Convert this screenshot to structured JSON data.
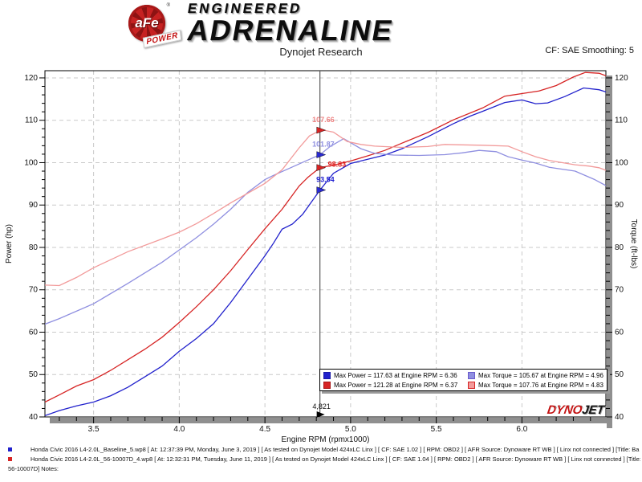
{
  "header": {
    "logo_text": "aFe",
    "logo_reg": "®",
    "logo_sub": "POWER",
    "brand_small": "ENGINEERED",
    "brand_large": "ADRENALINE",
    "subtitle": "Dynojet Research",
    "smoothing": "CF: SAE Smoothing: 5"
  },
  "chart_data": {
    "type": "line",
    "title": "Dynojet Research",
    "xlabel": "Engine RPM (rpmx1000)",
    "ylabel_left": "Power (hp)",
    "ylabel_right": "Torque (ft-lbs)",
    "xlim": [
      3.216,
      6.49
    ],
    "ylim": [
      40,
      121.7
    ],
    "x_ticks": [
      3.5,
      4.0,
      4.5,
      5.0,
      5.5,
      6.0
    ],
    "y_ticks": [
      40,
      50,
      60,
      70,
      80,
      90,
      100,
      110,
      120
    ],
    "grid": true,
    "series": [
      {
        "name": "power-baseline",
        "color": "#2121cc",
        "points": [
          [
            3.216,
            40.3
          ],
          [
            3.3,
            41.5
          ],
          [
            3.4,
            42.6
          ],
          [
            3.5,
            43.5
          ],
          [
            3.6,
            45.0
          ],
          [
            3.7,
            47.0
          ],
          [
            3.8,
            49.5
          ],
          [
            3.9,
            52.0
          ],
          [
            4.0,
            55.5
          ],
          [
            4.1,
            58.5
          ],
          [
            4.2,
            62.0
          ],
          [
            4.3,
            67.0
          ],
          [
            4.4,
            72.5
          ],
          [
            4.5,
            78.0
          ],
          [
            4.55,
            81.0
          ],
          [
            4.6,
            84.3
          ],
          [
            4.66,
            85.5
          ],
          [
            4.72,
            87.8
          ],
          [
            4.821,
            93.54
          ],
          [
            4.9,
            97.5
          ],
          [
            5.0,
            99.8
          ],
          [
            5.1,
            100.8
          ],
          [
            5.2,
            101.8
          ],
          [
            5.3,
            103.3
          ],
          [
            5.45,
            106.1
          ],
          [
            5.6,
            109.2
          ],
          [
            5.7,
            111.0
          ],
          [
            5.77,
            112.1
          ],
          [
            5.9,
            114.2
          ],
          [
            6.0,
            114.8
          ],
          [
            6.08,
            113.9
          ],
          [
            6.15,
            114.1
          ],
          [
            6.25,
            115.6
          ],
          [
            6.36,
            117.63
          ],
          [
            6.45,
            117.2
          ],
          [
            6.49,
            116.7
          ]
        ]
      },
      {
        "name": "power-modified",
        "color": "#d62424",
        "points": [
          [
            3.216,
            43.5
          ],
          [
            3.3,
            45.2
          ],
          [
            3.4,
            47.3
          ],
          [
            3.5,
            48.8
          ],
          [
            3.6,
            51.0
          ],
          [
            3.7,
            53.5
          ],
          [
            3.8,
            56.0
          ],
          [
            3.9,
            58.8
          ],
          [
            4.0,
            62.3
          ],
          [
            4.1,
            66.0
          ],
          [
            4.2,
            70.0
          ],
          [
            4.3,
            74.5
          ],
          [
            4.4,
            79.5
          ],
          [
            4.5,
            84.4
          ],
          [
            4.6,
            89.0
          ],
          [
            4.7,
            94.5
          ],
          [
            4.75,
            96.5
          ],
          [
            4.821,
            98.83
          ],
          [
            4.9,
            99.4
          ],
          [
            5.0,
            100.4
          ],
          [
            5.1,
            101.6
          ],
          [
            5.2,
            102.9
          ],
          [
            5.3,
            104.6
          ],
          [
            5.45,
            107.1
          ],
          [
            5.6,
            110.1
          ],
          [
            5.77,
            112.9
          ],
          [
            5.9,
            115.7
          ],
          [
            6.0,
            116.3
          ],
          [
            6.1,
            116.9
          ],
          [
            6.2,
            118.2
          ],
          [
            6.3,
            120.2
          ],
          [
            6.37,
            121.28
          ],
          [
            6.45,
            121.1
          ],
          [
            6.49,
            120.5
          ]
        ]
      },
      {
        "name": "torque-baseline",
        "color": "#8f8fe0",
        "points": [
          [
            3.216,
            61.9
          ],
          [
            3.3,
            63.2
          ],
          [
            3.5,
            66.7
          ],
          [
            3.7,
            71.5
          ],
          [
            3.9,
            76.5
          ],
          [
            4.0,
            79.4
          ],
          [
            4.1,
            82.3
          ],
          [
            4.2,
            85.5
          ],
          [
            4.3,
            89.0
          ],
          [
            4.4,
            93.0
          ],
          [
            4.5,
            96.0
          ],
          [
            4.55,
            97.0
          ],
          [
            4.65,
            98.8
          ],
          [
            4.75,
            100.6
          ],
          [
            4.821,
            101.87
          ],
          [
            4.88,
            103.8
          ],
          [
            4.96,
            105.67
          ],
          [
            5.06,
            103.3
          ],
          [
            5.14,
            102.2
          ],
          [
            5.25,
            101.8
          ],
          [
            5.4,
            101.7
          ],
          [
            5.55,
            101.9
          ],
          [
            5.65,
            102.3
          ],
          [
            5.75,
            102.9
          ],
          [
            5.85,
            102.6
          ],
          [
            5.92,
            101.4
          ],
          [
            6.0,
            100.6
          ],
          [
            6.08,
            99.9
          ],
          [
            6.16,
            98.9
          ],
          [
            6.31,
            98.0
          ],
          [
            6.42,
            96.1
          ],
          [
            6.49,
            94.6
          ]
        ]
      },
      {
        "name": "torque-modified",
        "color": "#f29a9a",
        "points": [
          [
            3.216,
            71.1
          ],
          [
            3.3,
            71.0
          ],
          [
            3.4,
            72.9
          ],
          [
            3.5,
            75.2
          ],
          [
            3.7,
            79.0
          ],
          [
            3.9,
            82.0
          ],
          [
            4.0,
            83.6
          ],
          [
            4.1,
            85.6
          ],
          [
            4.2,
            88.0
          ],
          [
            4.3,
            90.5
          ],
          [
            4.4,
            92.8
          ],
          [
            4.5,
            95.1
          ],
          [
            4.6,
            98.3
          ],
          [
            4.7,
            103.5
          ],
          [
            4.76,
            106.3
          ],
          [
            4.83,
            107.76
          ],
          [
            4.9,
            107.2
          ],
          [
            4.98,
            105.0
          ],
          [
            5.06,
            104.3
          ],
          [
            5.14,
            103.9
          ],
          [
            5.3,
            103.6
          ],
          [
            5.45,
            103.8
          ],
          [
            5.55,
            104.3
          ],
          [
            5.65,
            104.2
          ],
          [
            5.77,
            104.1
          ],
          [
            5.92,
            103.9
          ],
          [
            6.0,
            102.6
          ],
          [
            6.08,
            101.4
          ],
          [
            6.16,
            100.5
          ],
          [
            6.31,
            99.5
          ],
          [
            6.39,
            99.2
          ],
          [
            6.45,
            98.8
          ],
          [
            6.49,
            98.2
          ]
        ]
      }
    ],
    "cursor": {
      "rpm": 4.821,
      "label": "4,821",
      "markers": [
        {
          "label": "107.66",
          "value": 107.66,
          "text_color": "#ee8383",
          "marker_color": "#d62424",
          "side": "left"
        },
        {
          "label": "101.87",
          "value": 101.87,
          "text_color": "#8f8fe0",
          "marker_color": "#2a2ad0",
          "side": "left"
        },
        {
          "label": "98.83",
          "value": 98.83,
          "text_color": "#dd1414",
          "marker_color": "#d62424",
          "side": "right"
        },
        {
          "label": "93.54",
          "value": 93.54,
          "text_color": "#1d1dd0",
          "marker_color": "#2a2ad0",
          "side": "left"
        }
      ]
    },
    "legend": [
      {
        "swatch": "#2121cc",
        "border": "#1a1aa8",
        "text": "Max Power = 117.63 at Engine RPM = 6.36"
      },
      {
        "swatch": "#d62424",
        "border": "#a81414",
        "text": "Max Power = 121.28 at Engine RPM = 6.37"
      },
      {
        "swatch": "#8f8fe0",
        "border": "#6a5acd",
        "text": "Max Torque = 105.67 at Engine RPM = 4.96"
      },
      {
        "swatch": "#f29a9a",
        "border": "#d62424",
        "text": "Max Torque = 107.76 at Engine RPM = 4.83"
      }
    ],
    "watermark": {
      "part1": "DYNO",
      "part2": "JET"
    }
  },
  "footer": {
    "lines": [
      {
        "bullet_color": "#2121cc",
        "text": "Honda Civic 2016 L4-2.0L_Baseline_5.wp8 [ At: 12:37:39 PM, Monday, June 3, 2019 ] [ As tested on Dynojet Model 424xLC Linx ] [ CF: SAE 1.02 ] [ RPM: OBD2 ] [ AFR Source: Dynoware RT WB ] [ Linx not connected ] [Title: Ba"
      },
      {
        "bullet_color": "#d62424",
        "text": "Honda Civic 2016 L4-2.0L_56-10007D_4.wp8 [ At: 12:32:31 PM, Tuesday, June 11, 2019 ] [ As tested on Dynojet Model 424xLC Linx ] [ CF: SAE 1.04 ] [ RPM: OBD2 ] [ AFR Source: Dynoware RT WB ] [ Linx not connected ] [Title:"
      },
      {
        "bullet_color": null,
        "text": "56-10007D]  Notes:"
      }
    ]
  }
}
